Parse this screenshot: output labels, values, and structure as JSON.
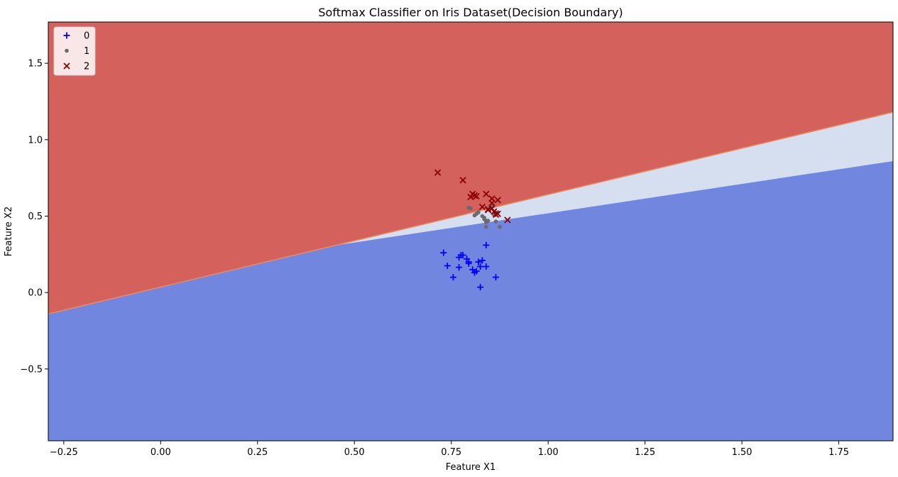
{
  "chart_data": {
    "type": "scatter",
    "title": "Softmax Classifier on Iris Dataset(Decision Boundary)",
    "xlabel": "Feature X1",
    "ylabel": "Feature X2",
    "xlim": [
      -0.29,
      1.89
    ],
    "ylim": [
      -0.97,
      1.77
    ],
    "xticks": [
      -0.25,
      0.0,
      0.25,
      0.5,
      0.75,
      1.0,
      1.25,
      1.5,
      1.75
    ],
    "xtick_labels": [
      "−0.25",
      "0.00",
      "0.25",
      "0.50",
      "0.75",
      "1.00",
      "1.25",
      "1.50",
      "1.75"
    ],
    "yticks": [
      -0.5,
      0.0,
      0.5,
      1.0,
      1.5
    ],
    "ytick_labels": [
      "−0.5",
      "0.0",
      "0.5",
      "1.0",
      "1.5"
    ],
    "grid": false,
    "legend_position": "top-left",
    "regions": [
      {
        "class": "0",
        "color": "#7186de",
        "description_region": "below lower boundary"
      },
      {
        "class": "1",
        "color": "#d5dff0",
        "description_region": "between boundaries"
      },
      {
        "class": "2",
        "color": "#d4615c",
        "description_region": "above upper boundary"
      }
    ],
    "boundaries": {
      "upper": [
        [
          -0.29,
          -0.14
        ],
        [
          1.89,
          1.18
        ]
      ],
      "lower": [
        [
          0.45,
          0.39
        ],
        [
          1.89,
          0.86
        ]
      ]
    },
    "series": [
      {
        "name": "0",
        "marker": "plus",
        "color": "#0000ff",
        "x": [
          0.73,
          0.74,
          0.755,
          0.77,
          0.775,
          0.78,
          0.79,
          0.795,
          0.795,
          0.805,
          0.81,
          0.815,
          0.82,
          0.825,
          0.825,
          0.83,
          0.84,
          0.84,
          0.865,
          0.77
        ],
        "y": [
          0.26,
          0.175,
          0.1,
          0.23,
          0.245,
          0.245,
          0.22,
          0.19,
          0.2,
          0.15,
          0.13,
          0.14,
          0.2,
          0.17,
          0.035,
          0.21,
          0.17,
          0.31,
          0.1,
          0.165
        ]
      },
      {
        "name": "1",
        "marker": "dot",
        "color": "#6b6b6b",
        "x": [
          0.795,
          0.8,
          0.81,
          0.815,
          0.82,
          0.83,
          0.835,
          0.835,
          0.84,
          0.84,
          0.845,
          0.85,
          0.855,
          0.86,
          0.865,
          0.875,
          0.87,
          0.84
        ],
        "y": [
          0.555,
          0.55,
          0.505,
          0.515,
          0.525,
          0.5,
          0.48,
          0.49,
          0.47,
          0.43,
          0.47,
          0.555,
          0.565,
          0.51,
          0.465,
          0.43,
          0.525,
          0.46
        ]
      },
      {
        "name": "2",
        "marker": "x",
        "color": "#8b0000",
        "x": [
          0.715,
          0.78,
          0.8,
          0.805,
          0.81,
          0.815,
          0.83,
          0.84,
          0.845,
          0.855,
          0.855,
          0.86,
          0.865,
          0.87,
          0.87,
          0.895,
          0.845,
          0.855
        ],
        "y": [
          0.785,
          0.735,
          0.625,
          0.645,
          0.635,
          0.63,
          0.56,
          0.645,
          0.545,
          0.585,
          0.615,
          0.53,
          0.51,
          0.605,
          0.515,
          0.475,
          0.54,
          0.55
        ]
      }
    ]
  }
}
